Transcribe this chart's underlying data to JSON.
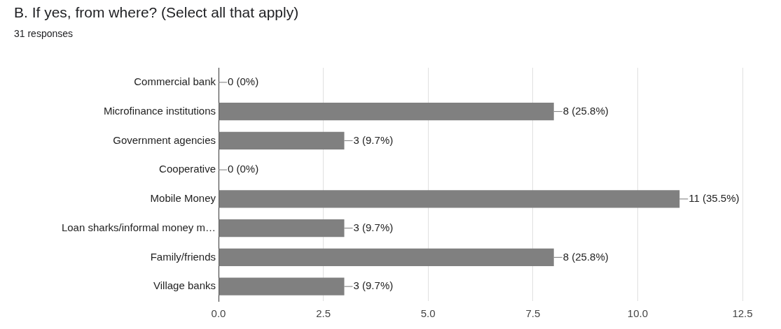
{
  "chart_data": {
    "type": "bar",
    "title": "B. If yes, from where? (Select all that apply)",
    "subtitle": "31 responses",
    "orientation": "horizontal",
    "categories": [
      "Commercial bank",
      "Microfinance institutions",
      "Government agencies",
      "Cooperative",
      "Mobile Money",
      "Loan sharks/informal money m…",
      "Family/friends",
      "Village banks"
    ],
    "values": [
      0,
      8,
      3,
      0,
      11,
      3,
      8,
      3
    ],
    "value_labels": [
      "0 (0%)",
      "8 (25.8%)",
      "3 (9.7%)",
      "0 (0%)",
      "11 (35.5%)",
      "3 (9.7%)",
      "8 (25.8%)",
      "3 (9.7%)"
    ],
    "color": "#808080",
    "xlim": [
      0,
      12.5
    ],
    "xticks": [
      {
        "value": 0,
        "label": "0.0"
      },
      {
        "value": 2.5,
        "label": "2.5"
      },
      {
        "value": 5,
        "label": "5.0"
      },
      {
        "value": 7.5,
        "label": "7.5"
      },
      {
        "value": 10,
        "label": "10.0"
      },
      {
        "value": 12.5,
        "label": "12.5"
      }
    ],
    "grid": "x"
  }
}
